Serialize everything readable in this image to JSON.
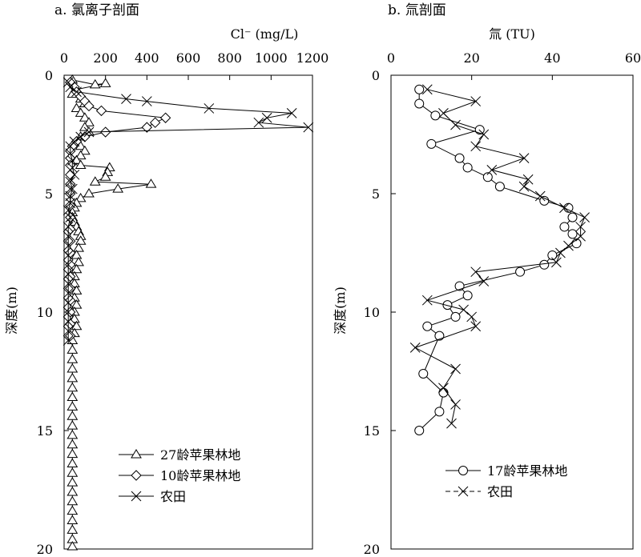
{
  "chart_data": [
    {
      "type": "line",
      "panel_title": "a. 氯离子剖面",
      "xlabel": "Cl⁻ (mg/L)",
      "ylabel": "深度(m)",
      "xlim": [
        0,
        1200
      ],
      "ylim": [
        0,
        20
      ],
      "x_axis_position": "top",
      "y_inverted": true,
      "x_ticks": [
        0,
        200,
        400,
        600,
        800,
        1000,
        1200
      ],
      "y_ticks": [
        0,
        5,
        10,
        15,
        20
      ],
      "legend_position": "lower-right",
      "series": [
        {
          "name": "27龄苹果林地",
          "marker": "triangle",
          "points": [
            [
              40,
              0.2
            ],
            [
              150,
              0.4
            ],
            [
              200,
              0.35
            ],
            [
              60,
              0.6
            ],
            [
              40,
              0.8
            ],
            [
              80,
              1.0
            ],
            [
              100,
              1.2
            ],
            [
              60,
              1.4
            ],
            [
              80,
              1.6
            ],
            [
              100,
              1.8
            ],
            [
              120,
              2.0
            ],
            [
              100,
              2.2
            ],
            [
              120,
              2.4
            ],
            [
              80,
              2.6
            ],
            [
              60,
              2.8
            ],
            [
              80,
              3.0
            ],
            [
              100,
              3.2
            ],
            [
              80,
              3.4
            ],
            [
              60,
              3.6
            ],
            [
              80,
              3.8
            ],
            [
              220,
              3.9
            ],
            [
              210,
              4.1
            ],
            [
              200,
              4.3
            ],
            [
              150,
              4.5
            ],
            [
              420,
              4.6
            ],
            [
              260,
              4.8
            ],
            [
              120,
              5.0
            ],
            [
              80,
              5.2
            ],
            [
              60,
              5.4
            ],
            [
              50,
              5.6
            ],
            [
              40,
              5.8
            ],
            [
              40,
              6.0
            ],
            [
              50,
              6.2
            ],
            [
              60,
              6.4
            ],
            [
              70,
              6.6
            ],
            [
              80,
              6.8
            ],
            [
              80,
              7.0
            ],
            [
              70,
              7.3
            ],
            [
              60,
              7.6
            ],
            [
              70,
              7.9
            ],
            [
              60,
              8.2
            ],
            [
              50,
              8.5
            ],
            [
              50,
              8.8
            ],
            [
              60,
              9.1
            ],
            [
              50,
              9.4
            ],
            [
              60,
              9.7
            ],
            [
              50,
              10.0
            ],
            [
              50,
              10.3
            ],
            [
              60,
              10.6
            ],
            [
              50,
              10.9
            ],
            [
              40,
              11.2
            ],
            [
              40,
              11.6
            ],
            [
              40,
              12.0
            ],
            [
              40,
              12.4
            ],
            [
              40,
              12.8
            ],
            [
              40,
              13.2
            ],
            [
              40,
              13.6
            ],
            [
              40,
              14.0
            ],
            [
              40,
              14.4
            ],
            [
              40,
              14.8
            ],
            [
              40,
              15.2
            ],
            [
              40,
              15.6
            ],
            [
              40,
              16.0
            ],
            [
              40,
              16.4
            ],
            [
              40,
              16.8
            ],
            [
              40,
              17.2
            ],
            [
              40,
              17.6
            ],
            [
              40,
              18.0
            ],
            [
              40,
              18.4
            ],
            [
              40,
              18.8
            ],
            [
              40,
              19.2
            ],
            [
              40,
              19.6
            ],
            [
              40,
              19.9
            ]
          ]
        },
        {
          "name": "10龄苹果林地",
          "marker": "diamond",
          "points": [
            [
              30,
              0.3
            ],
            [
              50,
              0.5
            ],
            [
              60,
              0.7
            ],
            [
              80,
              0.9
            ],
            [
              100,
              1.1
            ],
            [
              120,
              1.3
            ],
            [
              180,
              1.5
            ],
            [
              490,
              1.8
            ],
            [
              440,
              2.0
            ],
            [
              400,
              2.2
            ],
            [
              200,
              2.4
            ],
            [
              100,
              2.6
            ],
            [
              60,
              2.8
            ],
            [
              40,
              3.0
            ],
            [
              30,
              3.2
            ],
            [
              30,
              3.5
            ],
            [
              30,
              3.8
            ],
            [
              30,
              4.2
            ],
            [
              30,
              4.6
            ],
            [
              30,
              5.0
            ],
            [
              30,
              5.5
            ],
            [
              30,
              6.0
            ],
            [
              30,
              6.5
            ],
            [
              30,
              7.0
            ],
            [
              30,
              7.5
            ],
            [
              30,
              8.0
            ],
            [
              30,
              8.5
            ],
            [
              30,
              9.0
            ],
            [
              30,
              9.5
            ],
            [
              30,
              10.0
            ],
            [
              30,
              10.5
            ],
            [
              30,
              11.0
            ]
          ]
        },
        {
          "name": "农田",
          "marker": "x",
          "points": [
            [
              20,
              0.3
            ],
            [
              30,
              0.5
            ],
            [
              60,
              0.7
            ],
            [
              300,
              1.0
            ],
            [
              400,
              1.1
            ],
            [
              700,
              1.4
            ],
            [
              1100,
              1.6
            ],
            [
              980,
              1.8
            ],
            [
              940,
              2.0
            ],
            [
              1180,
              2.2
            ],
            [
              120,
              2.4
            ],
            [
              80,
              2.6
            ],
            [
              50,
              2.8
            ],
            [
              30,
              3.0
            ],
            [
              30,
              3.3
            ],
            [
              40,
              3.6
            ],
            [
              40,
              3.9
            ],
            [
              50,
              4.2
            ],
            [
              30,
              4.5
            ],
            [
              40,
              4.8
            ],
            [
              30,
              5.1
            ],
            [
              30,
              5.4
            ],
            [
              20,
              5.7
            ],
            [
              30,
              6.0
            ],
            [
              20,
              6.4
            ],
            [
              20,
              6.8
            ],
            [
              20,
              7.2
            ],
            [
              20,
              7.6
            ],
            [
              20,
              8.0
            ],
            [
              20,
              8.4
            ],
            [
              20,
              8.8
            ],
            [
              20,
              9.2
            ],
            [
              20,
              9.6
            ],
            [
              20,
              10.0
            ],
            [
              20,
              10.4
            ],
            [
              20,
              10.8
            ],
            [
              20,
              11.2
            ]
          ]
        }
      ]
    },
    {
      "type": "line",
      "panel_title": "b. 氚剖面",
      "xlabel": "氚 (TU)",
      "ylabel": "深度(m)",
      "xlim": [
        0,
        60
      ],
      "ylim": [
        0,
        20
      ],
      "x_axis_position": "top",
      "y_inverted": true,
      "x_ticks": [
        0,
        20,
        40,
        60
      ],
      "y_ticks": [
        0,
        5,
        10,
        15,
        20
      ],
      "legend_position": "lower-right",
      "series": [
        {
          "name": "17龄苹果林地",
          "marker": "circle",
          "points": [
            [
              7,
              0.6
            ],
            [
              7,
              1.2
            ],
            [
              11,
              1.7
            ],
            [
              22,
              2.3
            ],
            [
              10,
              2.9
            ],
            [
              17,
              3.5
            ],
            [
              19,
              3.9
            ],
            [
              24,
              4.3
            ],
            [
              27,
              4.7
            ],
            [
              38,
              5.3
            ],
            [
              44,
              5.6
            ],
            [
              45,
              6.0
            ],
            [
              43,
              6.4
            ],
            [
              45,
              6.7
            ],
            [
              46,
              7.1
            ],
            [
              40,
              7.6
            ],
            [
              38,
              8.0
            ],
            [
              32,
              8.3
            ],
            [
              17,
              8.9
            ],
            [
              19,
              9.3
            ],
            [
              14,
              9.7
            ],
            [
              16,
              10.2
            ],
            [
              9,
              10.6
            ],
            [
              12,
              11.0
            ],
            [
              8,
              12.6
            ],
            [
              13,
              13.4
            ],
            [
              12,
              14.2
            ],
            [
              7,
              15.0
            ]
          ]
        },
        {
          "name": "农田",
          "marker": "x",
          "points": [
            [
              9,
              0.6
            ],
            [
              21,
              1.1
            ],
            [
              13,
              1.6
            ],
            [
              16,
              2.1
            ],
            [
              23,
              2.5
            ],
            [
              21,
              3.0
            ],
            [
              33,
              3.5
            ],
            [
              25,
              4.0
            ],
            [
              34,
              4.4
            ],
            [
              33,
              4.7
            ],
            [
              37,
              5.1
            ],
            [
              43,
              5.6
            ],
            [
              48,
              6.0
            ],
            [
              47,
              6.4
            ],
            [
              47,
              6.8
            ],
            [
              44,
              7.2
            ],
            [
              42,
              7.5
            ],
            [
              41,
              7.9
            ],
            [
              21,
              8.3
            ],
            [
              23,
              8.7
            ],
            [
              9,
              9.5
            ],
            [
              18,
              9.9
            ],
            [
              20,
              10.2
            ],
            [
              21,
              10.6
            ],
            [
              6,
              11.5
            ],
            [
              16,
              12.4
            ],
            [
              13,
              13.2
            ],
            [
              16,
              13.9
            ],
            [
              15,
              14.7
            ]
          ]
        }
      ]
    }
  ]
}
